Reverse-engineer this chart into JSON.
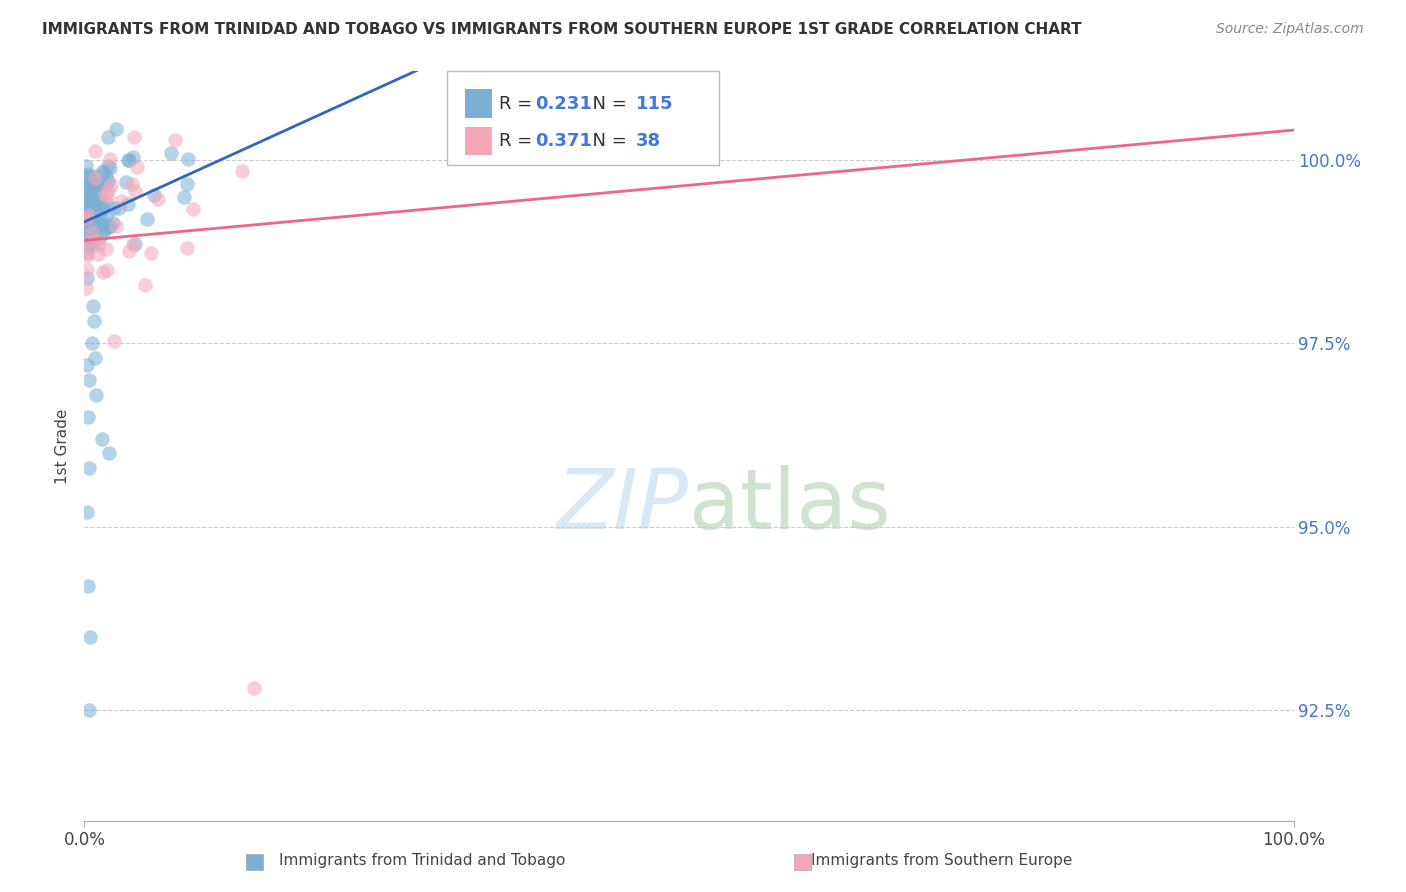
{
  "title": "IMMIGRANTS FROM TRINIDAD AND TOBAGO VS IMMIGRANTS FROM SOUTHERN EUROPE 1ST GRADE CORRELATION CHART",
  "source": "Source: ZipAtlas.com",
  "ylabel": "1st Grade",
  "yticks": [
    92.5,
    95.0,
    97.5,
    100.0
  ],
  "ytick_labels": [
    "92.5%",
    "95.0%",
    "97.5%",
    "100.0%"
  ],
  "xmin": 0.0,
  "xmax": 100.0,
  "ymin": 91.0,
  "ymax": 101.2,
  "blue_R": 0.231,
  "blue_N": 115,
  "pink_R": 0.371,
  "pink_N": 38,
  "blue_color": "#7BAFD4",
  "pink_color": "#F4A7B9",
  "blue_line_color": "#3366BB",
  "pink_line_color": "#EE6688",
  "legend_label_blue": "Immigrants from Trinidad and Tobago",
  "legend_label_pink": "Immigrants from Southern Europe",
  "watermark_zip": "ZIP",
  "watermark_atlas": "atlas",
  "grid_color": "#CCCCCC"
}
